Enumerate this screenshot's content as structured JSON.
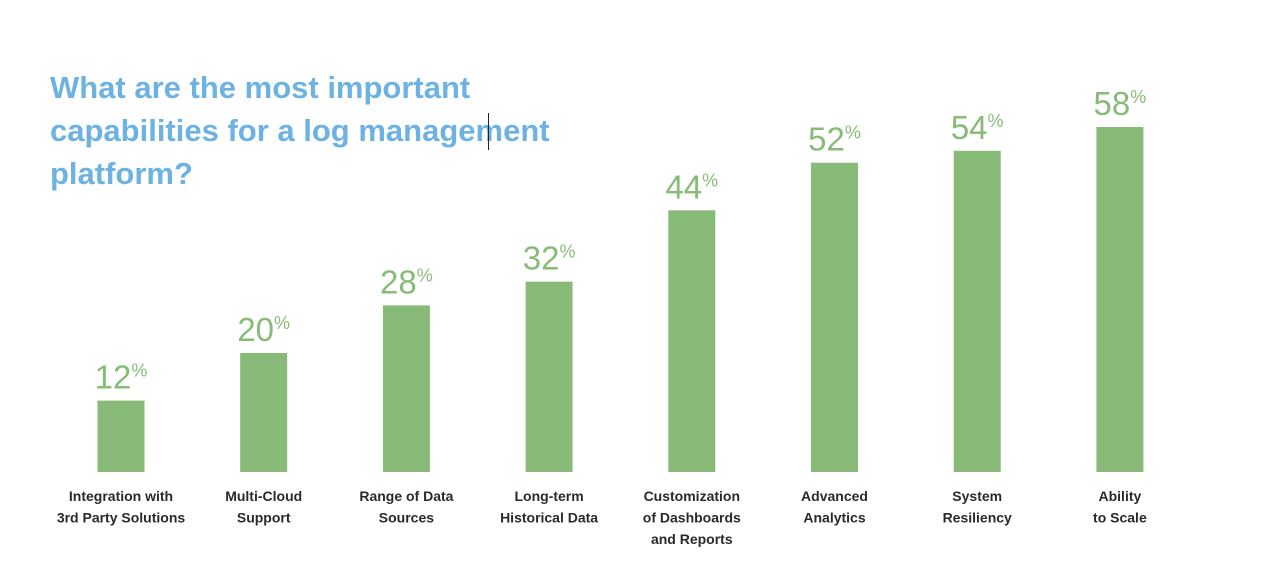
{
  "chart_data": {
    "type": "bar",
    "title": "What are the most important capabilities for a log management platform?",
    "categories": [
      [
        "Integration with",
        "3rd Party Solutions"
      ],
      [
        "Multi-Cloud",
        "Support"
      ],
      [
        "Range of Data",
        "Sources"
      ],
      [
        "Long-term",
        "Historical Data"
      ],
      [
        "Customization",
        "of Dashboards",
        "and Reports"
      ],
      [
        "Advanced",
        "Analytics"
      ],
      [
        "System",
        "Resiliency"
      ],
      [
        "Ability",
        "to Scale"
      ]
    ],
    "values": [
      12,
      20,
      28,
      32,
      44,
      52,
      54,
      58
    ],
    "value_suffix": "%",
    "xlabel": "",
    "ylabel": "",
    "ylim": [
      0,
      58
    ],
    "grid": false,
    "colors": {
      "bar": "#88bb77",
      "value_label": "#88bb77",
      "title": "#6cb2e2",
      "category_label": "#2a2a2a"
    }
  }
}
